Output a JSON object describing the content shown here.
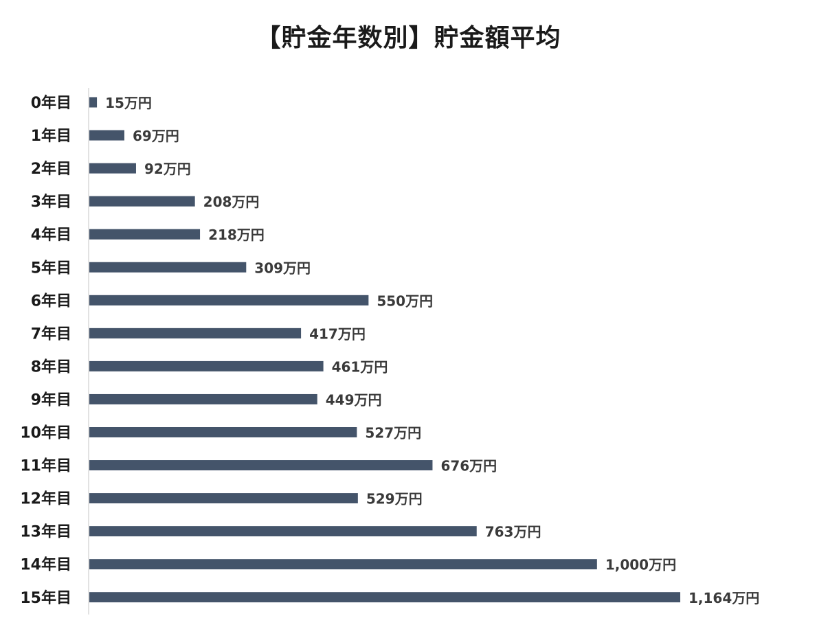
{
  "chart_data": {
    "type": "bar",
    "orientation": "horizontal",
    "title": "【貯金年数別】貯金額平均",
    "xlabel": "",
    "ylabel": "",
    "categories": [
      "0年目",
      "1年目",
      "2年目",
      "3年目",
      "4年目",
      "5年目",
      "6年目",
      "7年目",
      "8年目",
      "9年目",
      "10年目",
      "11年目",
      "12年目",
      "13年目",
      "14年目",
      "15年目"
    ],
    "values": [
      15,
      69,
      92,
      208,
      218,
      309,
      550,
      417,
      461,
      449,
      527,
      676,
      529,
      763,
      1000,
      1164
    ],
    "value_labels": [
      "15万円",
      "69万円",
      "92万円",
      "208万円",
      "218万円",
      "309万円",
      "550万円",
      "417万円",
      "461万円",
      "449万円",
      "527万円",
      "676万円",
      "529万円",
      "763万円",
      "1,000万円",
      "1,164万円"
    ],
    "xlim": [
      0,
      1164
    ],
    "grid": false,
    "legend": "none",
    "bar_color": "#44546a",
    "axis_color": "#d9d9d9"
  }
}
